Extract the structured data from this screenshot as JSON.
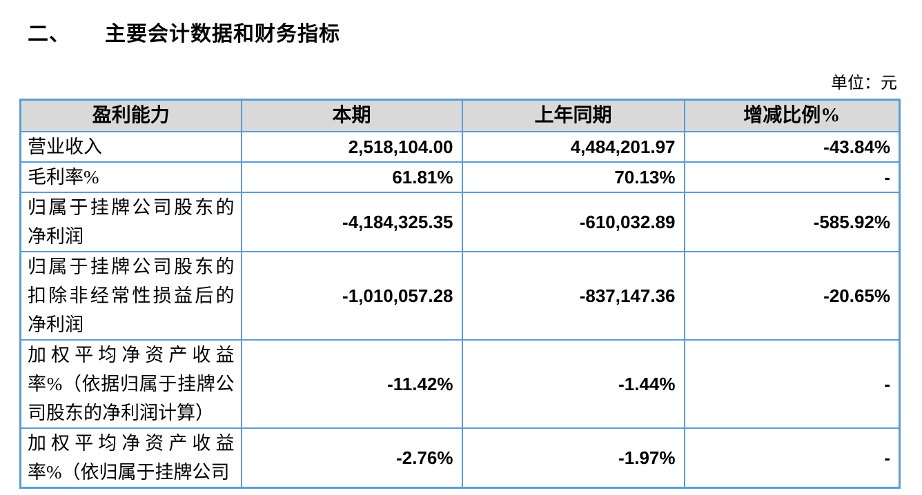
{
  "page": {
    "title_number": "二、",
    "title_text": "主要会计数据和财务指标",
    "unit_label": "单位：元"
  },
  "colors": {
    "table_border": "#5B9BD5",
    "header_bg": "#D9D9D9",
    "text": "#000000",
    "page_bg": "#FFFFFF"
  },
  "table": {
    "headers": [
      "盈利能力",
      "本期",
      "上年同期",
      "增减比例%"
    ],
    "rows": [
      {
        "label_lines": [
          "营业收入"
        ],
        "current": "2,518,104.00",
        "prior": "4,484,201.97",
        "change": "-43.84%"
      },
      {
        "label_lines": [
          "毛利率%"
        ],
        "current": "61.81%",
        "prior": "70.13%",
        "change": "-"
      },
      {
        "label_lines": [
          "归属于挂牌公司股东的",
          "净利润"
        ],
        "current": "-4,184,325.35",
        "prior": "-610,032.89",
        "change": "-585.92%"
      },
      {
        "label_lines": [
          "归属于挂牌公司股东的",
          "扣除非经常性损益后的",
          "净利润"
        ],
        "current": "-1,010,057.28",
        "prior": "-837,147.36",
        "change": "-20.65%"
      },
      {
        "label_lines": [
          "加权平均净资产收益",
          "率%（依据归属于挂牌公",
          "司股东的净利润计算）"
        ],
        "current": "-11.42%",
        "prior": "-1.44%",
        "change": "-"
      },
      {
        "label_lines": [
          "加权平均净资产收益",
          "率%（依归属于挂牌公司"
        ],
        "current": "-2.76%",
        "prior": "-1.97%",
        "change": "-"
      }
    ]
  }
}
